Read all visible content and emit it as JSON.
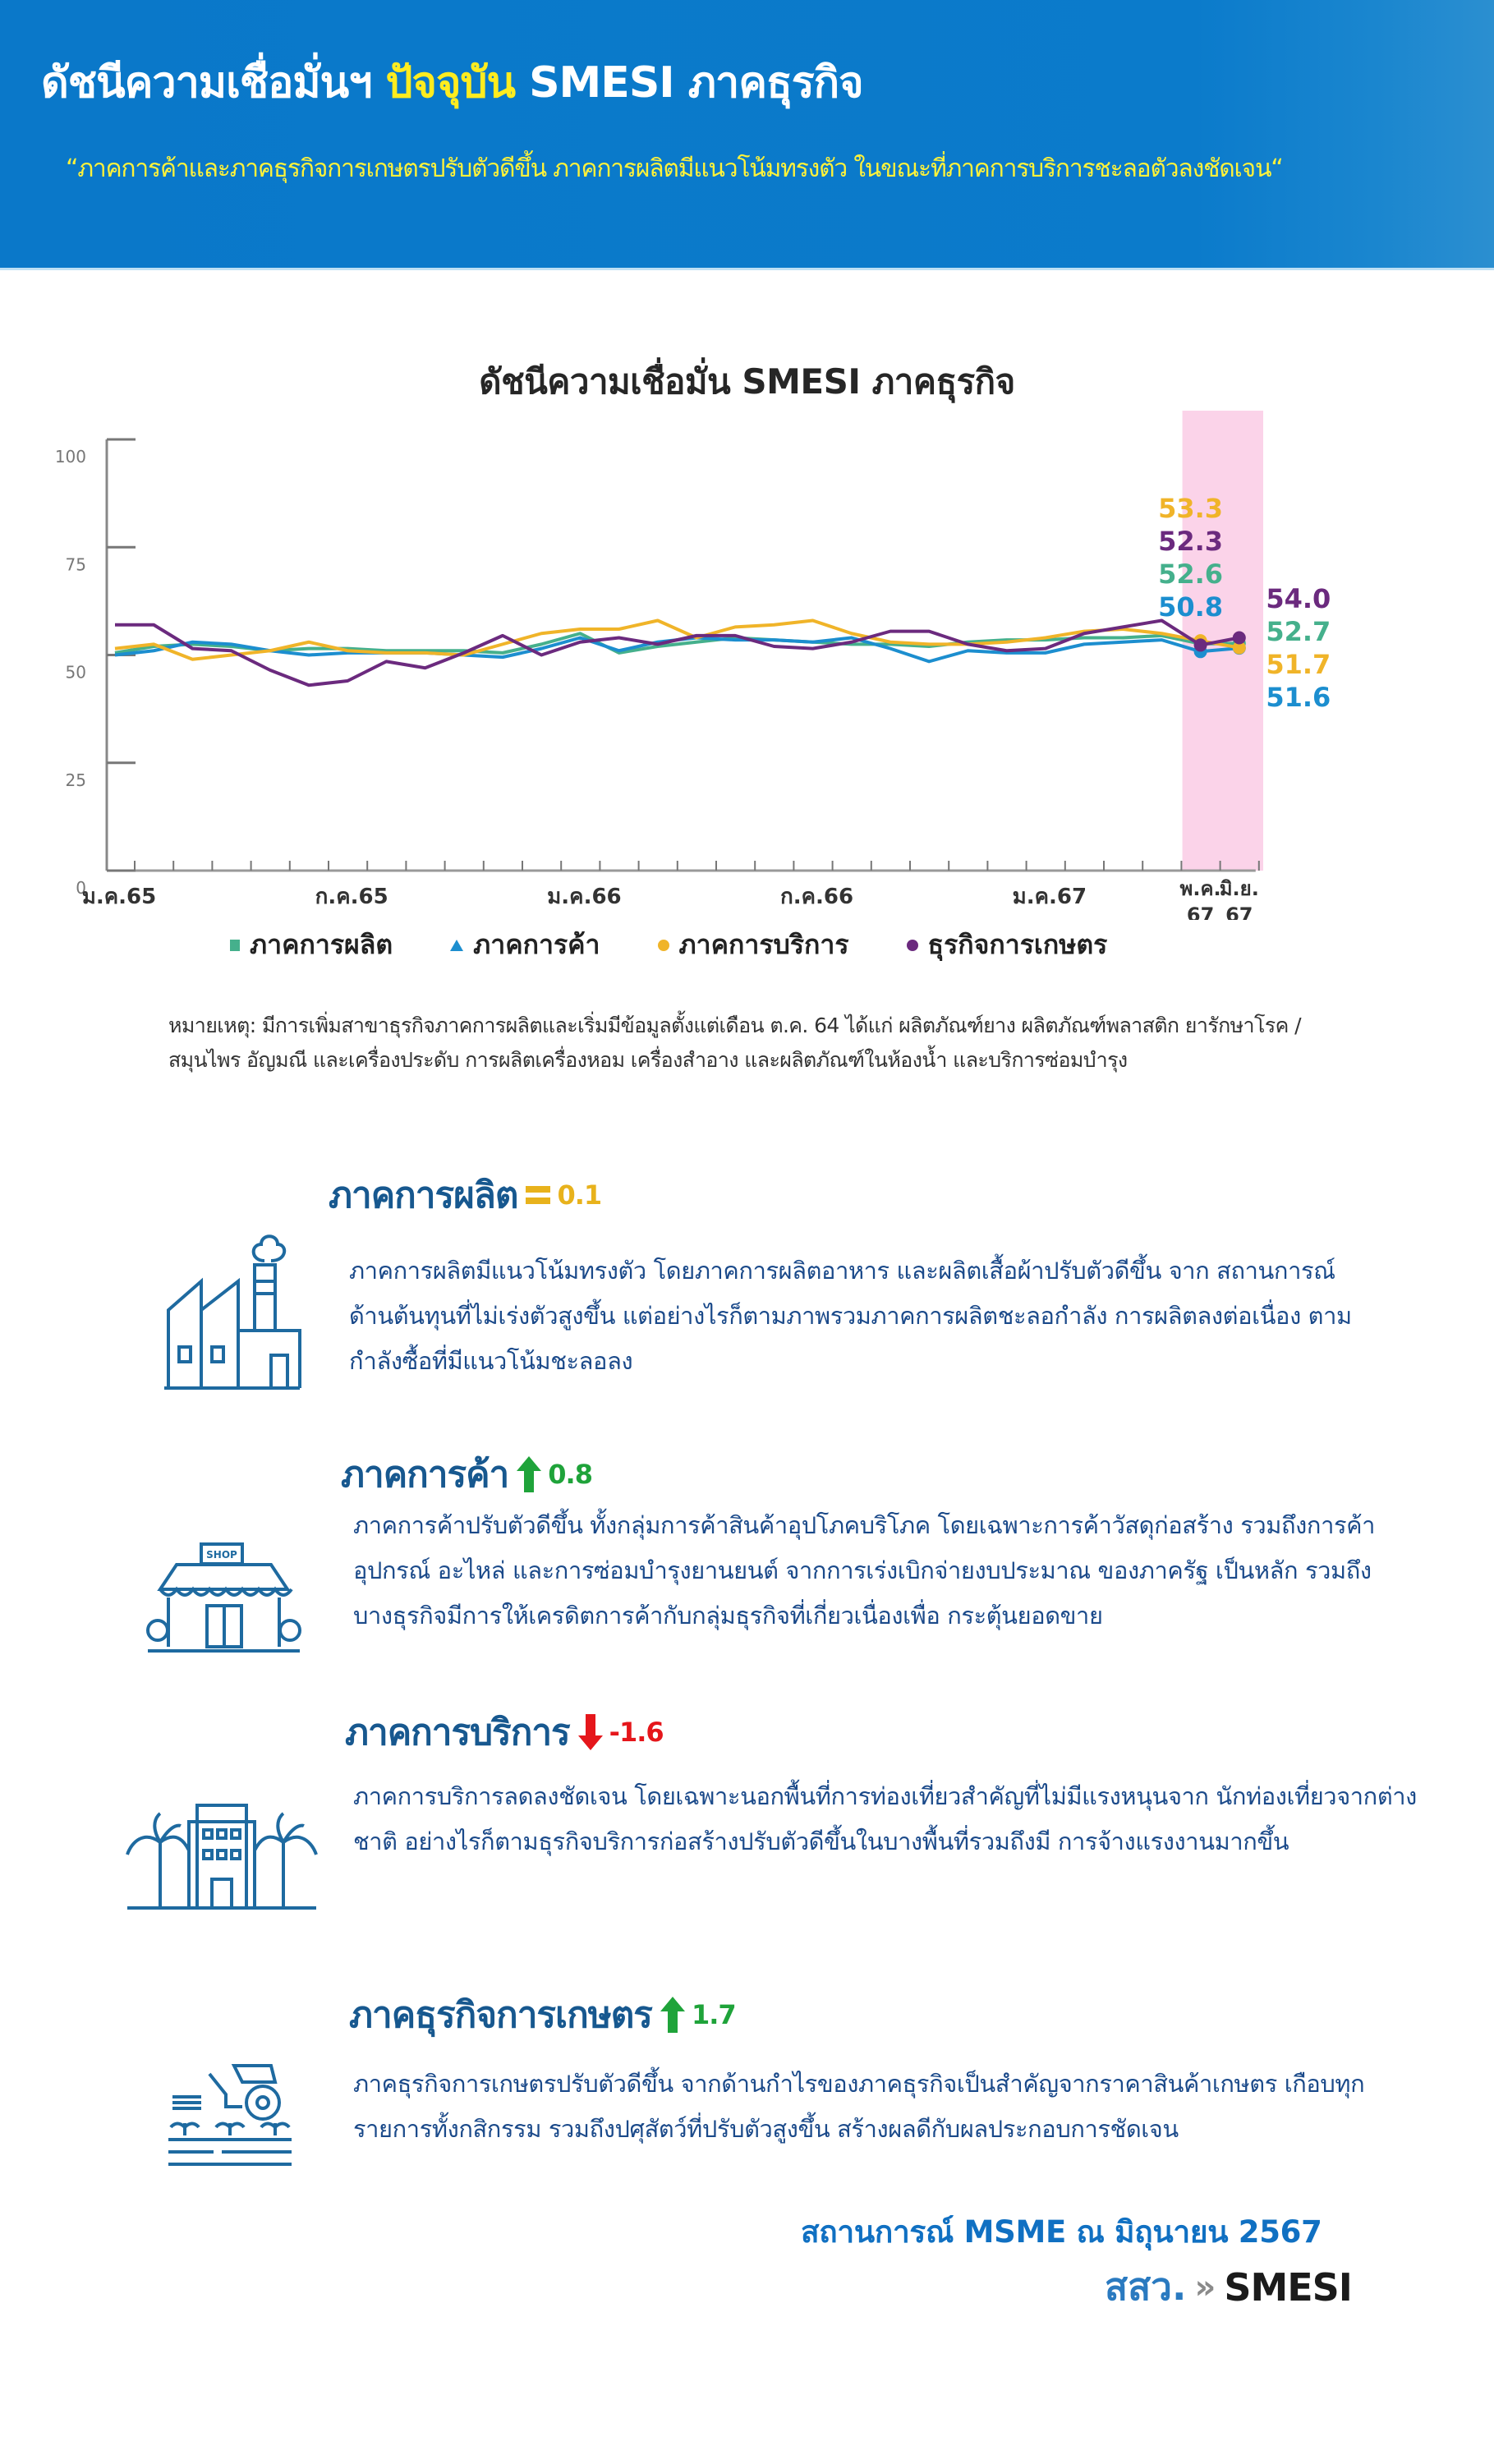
{
  "header": {
    "title_part1": "ดัชนีความเชื่อมั่นฯ ",
    "title_highlight": "ปัจจุบัน",
    "title_part2": " SMESI ภาคธุรกิจ",
    "quote": "“ภาคการค้าและภาคธุรกิจการเกษตรปรับตัวดีขึ้น ภาคการผลิตมีแนวโน้มทรงตัว ในขณะที่ภาคการบริการชะลอตัวลงชัดเจน“"
  },
  "chart": {
    "title": "ดัชนีความเชื่อมั่น SMESI ภาคธุรกิจ",
    "legend": [
      {
        "label": "ภาคการผลิต",
        "marker": "square",
        "color": "#45b08c"
      },
      {
        "label": "ภาคการค้า",
        "marker": "triangle",
        "color": "#1c8ecf"
      },
      {
        "label": "ภาคการบริการ",
        "marker": "dot",
        "color": "#f0b429"
      },
      {
        "label": "ธุรกิจการเกษตร",
        "marker": "dot",
        "color": "#6b2a7e"
      }
    ],
    "footnote": "หมายเหตุ: มีการเพิ่มสาขาธุรกิจภาคการผลิตและเริ่มมีข้อมูลตั้งแต่เดือน ต.ค. 64 ได้แก่ ผลิตภัณฑ์ยาง ผลิตภัณฑ์พลาสติก ยารักษาโรค /สมุนไพร อัญมณี และเครื่องประดับ การผลิตเครื่องหอม เครื่องสำอาง และผลิตภัณฑ์ในห้องน้ำ และบริการซ่อมบำรุง"
  },
  "chart_data": {
    "type": "line",
    "title": "ดัชนีความเชื่อมั่น SMESI ภาคธุรกิจ",
    "xlabel": "",
    "ylabel": "",
    "ylim": [
      0,
      100
    ],
    "yticks": [
      0,
      25,
      50,
      75,
      100
    ],
    "x_tick_labels": [
      "ม.ค.65",
      "ก.ค.65",
      "ม.ค.66",
      "ก.ค.66",
      "ม.ค.67",
      "พ.ค. 67",
      "มิ.ย. 67"
    ],
    "x": [
      "ม.ค.65",
      "ก.พ.65",
      "มี.ค.65",
      "เม.ย.65",
      "พ.ค.65",
      "มิ.ย.65",
      "ก.ค.65",
      "ส.ค.65",
      "ก.ย.65",
      "ต.ค.65",
      "พ.ย.65",
      "ธ.ค.65",
      "ม.ค.66",
      "ก.พ.66",
      "มี.ค.66",
      "เม.ย.66",
      "พ.ค.66",
      "มิ.ย.66",
      "ก.ค.66",
      "ส.ค.66",
      "ก.ย.66",
      "ต.ค.66",
      "พ.ย.66",
      "ธ.ค.66",
      "ม.ค.67",
      "ก.พ.67",
      "มี.ค.67",
      "เม.ย.67",
      "พ.ค.67",
      "มิ.ย.67"
    ],
    "highlight_range": [
      "พ.ค. 67",
      "มิ.ย. 67"
    ],
    "grid": false,
    "legend_position": "bottom",
    "series": [
      {
        "name": "ภาคการผลิต",
        "color": "#45b08c",
        "values": [
          50.5,
          52.0,
          52.5,
          52.0,
          51.0,
          51.5,
          51.5,
          51.0,
          51.0,
          51.0,
          50.5,
          52.5,
          55.0,
          50.5,
          52.0,
          53.0,
          54.0,
          53.5,
          53.0,
          52.5,
          52.5,
          52.0,
          53.0,
          53.5,
          53.5,
          54.0,
          54.0,
          54.5,
          52.6,
          52.7
        ]
      },
      {
        "name": "ภาคการค้า",
        "color": "#1c8ecf",
        "values": [
          50.0,
          51.0,
          53.0,
          52.5,
          51.0,
          50.0,
          50.5,
          50.5,
          50.5,
          50.0,
          49.5,
          51.5,
          54.0,
          51.0,
          53.0,
          54.0,
          53.5,
          53.5,
          53.0,
          54.0,
          51.5,
          48.5,
          51.0,
          50.5,
          50.5,
          52.5,
          53.0,
          53.5,
          50.8,
          51.6
        ]
      },
      {
        "name": "ภาคการบริการ",
        "color": "#f0b429",
        "values": [
          51.5,
          52.5,
          49.0,
          50.0,
          51.0,
          53.0,
          51.0,
          50.5,
          50.5,
          50.0,
          52.5,
          55.0,
          56.0,
          56.0,
          58.0,
          54.0,
          56.5,
          57.0,
          58.0,
          55.0,
          53.0,
          52.5,
          52.5,
          53.0,
          54.0,
          55.5,
          56.0,
          55.0,
          53.3,
          51.7
        ]
      },
      {
        "name": "ธุรกิจการเกษตร",
        "color": "#6b2a7e",
        "values": [
          57.0,
          57.0,
          51.5,
          51.0,
          46.5,
          43.0,
          44.0,
          48.5,
          47.0,
          50.5,
          54.5,
          50.0,
          53.0,
          54.0,
          52.5,
          54.5,
          54.5,
          52.0,
          51.5,
          53.0,
          55.5,
          55.5,
          52.5,
          51.0,
          51.5,
          55.0,
          56.5,
          58.0,
          52.3,
          54.0
        ]
      }
    ],
    "annotations": {
      "may_67": [
        {
          "label": "53.3",
          "series": "ภาคการบริการ"
        },
        {
          "label": "52.3",
          "series": "ธุรกิจการเกษตร"
        },
        {
          "label": "52.6",
          "series": "ภาคการผลิต"
        },
        {
          "label": "50.8",
          "series": "ภาคการค้า"
        }
      ],
      "jun_67": [
        {
          "label": "54.0",
          "series": "ธุรกิจการเกษตร"
        },
        {
          "label": "52.7",
          "series": "ภาคการผลิต"
        },
        {
          "label": "51.7",
          "series": "ภาคการบริการ"
        },
        {
          "label": "51.6",
          "series": "ภาคการค้า"
        }
      ]
    }
  },
  "sectors": [
    {
      "icon": "factory-icon",
      "title": "ภาคการผลิต",
      "change_symbol": "=",
      "change": "0.1",
      "direction": "flat",
      "text": "ภาคการผลิตมีแนวโน้มทรงตัว โดยภาคการผลิตอาหาร และผลิตเสื้อผ้าปรับตัวดีขึ้น จาก สถานการณ์ด้านต้นทุนที่ไม่เร่งตัวสูงขึ้น แต่อย่างไรก็ตามภาพรวมภาคการผลิตชะลอกำลัง การผลิตลงต่อเนื่อง ตามกำลังซื้อที่มีแนวโน้มชะลอลง"
    },
    {
      "icon": "shop-icon",
      "title": "ภาคการค้า",
      "change_symbol": "↑",
      "change": "0.8",
      "direction": "up",
      "shop_sign": "SHOP",
      "text": "ภาคการค้าปรับตัวดีขึ้น ทั้งกลุ่มการค้าสินค้าอุปโภคบริโภค โดยเฉพาะการค้าวัสดุก่อสร้าง รวมถึงการค้าอุปกรณ์ อะไหล่ และการซ่อมบำรุงยานยนต์ จากการเร่งเบิกจ่ายงบประมาณ ของภาครัฐ เป็นหลัก รวมถึงบางธุรกิจมีการให้เครดิตการค้ากับกลุ่มธุรกิจที่เกี่ยวเนื่องเพื่อ กระตุ้นยอดขาย"
    },
    {
      "icon": "hotel-icon",
      "title": "ภาคการบริการ",
      "change_symbol": "↓",
      "change": "-1.6",
      "direction": "down",
      "text": "ภาคการบริการลดลงชัดเจน โดยเฉพาะนอกพื้นที่การท่องเที่ยวสำคัญที่ไม่มีแรงหนุนจาก นักท่องเที่ยวจากต่างชาติ อย่างไรก็ตามธุรกิจบริการก่อสร้างปรับตัวดีขึ้นในบางพื้นที่รวมถึงมี การจ้างแรงงานมากขึ้น"
    },
    {
      "icon": "tractor-icon",
      "title": "ภาคธุรกิจการเกษตร",
      "change_symbol": "↑",
      "change": "1.7",
      "direction": "up",
      "text": "ภาคธุรกิจการเกษตรปรับตัวดีขึ้น จากด้านกำไรของภาคธุรกิจเป็นสำคัญจากราคาสินค้าเกษตร เกือบทุกรายการทั้งกสิกรรม รวมถึงปศุสัตว์ที่ปรับตัวสูงขึ้น สร้างผลดีกับผลประกอบการชัดเจน"
    }
  ],
  "footer": {
    "situation": "สถานการณ์ MSME ณ มิถุนายน 2567",
    "logo_th": "สสว.",
    "logo_chevron": "»",
    "logo_en": "SMESI"
  },
  "colors": {
    "header_bg": "#0a78c9",
    "quote": "#fff23a",
    "highlight": "#ffec1f",
    "sector_title": "#17588f",
    "body_text": "#1b4a8a",
    "up": "#1fa33a",
    "down": "#e5161b",
    "flat": "#e8b21c",
    "highlight_band": "#fbd3e9"
  }
}
